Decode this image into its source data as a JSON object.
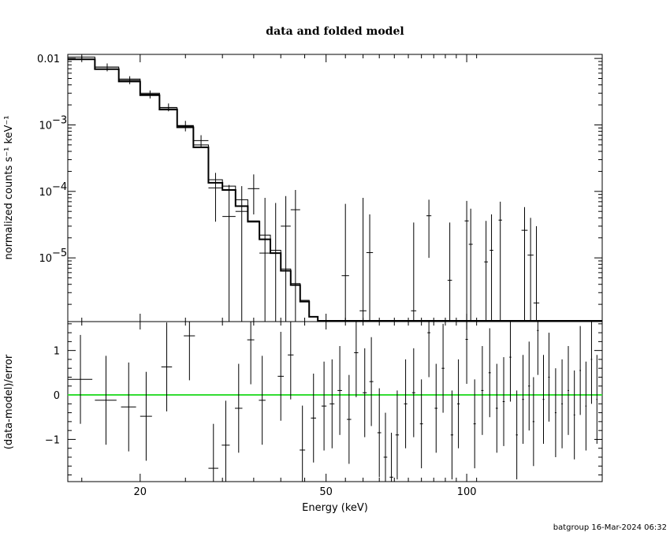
{
  "chart_data": {
    "type": "line",
    "title": "data and folded model",
    "footer": "batgroup 16-Mar-2024 06:32",
    "xlabel": "Energy (keV)",
    "xscale": "log",
    "xlim": [
      14,
      195
    ],
    "xticks": [
      {
        "value": 20,
        "label": "20"
      },
      {
        "value": 50,
        "label": "50"
      },
      {
        "value": 100,
        "label": "100"
      }
    ],
    "colors": {
      "axes": "#000000",
      "zero_line": "#33dd33"
    },
    "top_panel": {
      "ylabel": "normalized counts s⁻¹ keV⁻¹",
      "yscale": "log",
      "ylim": [
        1.1e-06,
        0.0115
      ],
      "yticks": [
        {
          "value": 0.01,
          "label": "0.01"
        },
        {
          "value": 0.001,
          "base": "10",
          "exp": "−3"
        },
        {
          "value": 0.0001,
          "base": "10",
          "exp": "−4"
        },
        {
          "value": 1e-05,
          "base": "10",
          "exp": "−5"
        }
      ],
      "model_thin": [
        {
          "x0": 14.0,
          "x1": 16.0,
          "y": 0.0105
        },
        {
          "x0": 16.0,
          "x1": 18.0,
          "y": 0.0074
        },
        {
          "x0": 18.0,
          "x1": 20.0,
          "y": 0.0049
        },
        {
          "x0": 20.0,
          "x1": 22.0,
          "y": 0.003
        },
        {
          "x0": 22.0,
          "x1": 24.0,
          "y": 0.0018
        },
        {
          "x0": 24.0,
          "x1": 26.0,
          "y": 0.00098
        },
        {
          "x0": 26.0,
          "x1": 28.0,
          "y": 0.0005
        },
        {
          "x0": 28.0,
          "x1": 30.0,
          "y": 0.00015
        },
        {
          "x0": 30.0,
          "x1": 32.0,
          "y": 0.00012
        },
        {
          "x0": 32.0,
          "x1": 34.0,
          "y": 7.5e-05
        },
        {
          "x0": 34.0,
          "x1": 36.0,
          "y": 3.6e-05
        },
        {
          "x0": 36.0,
          "x1": 38.0,
          "y": 2.2e-05
        },
        {
          "x0": 38.0,
          "x1": 40.0,
          "y": 1.3e-05
        },
        {
          "x0": 40.0,
          "x1": 42.0,
          "y": 6.8e-06
        },
        {
          "x0": 42.0,
          "x1": 44.0,
          "y": 4.1e-06
        },
        {
          "x0": 44.0,
          "x1": 46.0,
          "y": 2.3e-06
        },
        {
          "x0": 46.0,
          "x1": 48.0,
          "y": 1.3e-06
        }
      ],
      "model_thick": [
        {
          "x0": 14.0,
          "x1": 16.0,
          "y": 0.0097
        },
        {
          "x0": 16.0,
          "x1": 18.0,
          "y": 0.0069
        },
        {
          "x0": 18.0,
          "x1": 20.0,
          "y": 0.0045
        },
        {
          "x0": 20.0,
          "x1": 22.0,
          "y": 0.0028
        },
        {
          "x0": 22.0,
          "x1": 24.0,
          "y": 0.0017
        },
        {
          "x0": 24.0,
          "x1": 26.0,
          "y": 0.00092
        },
        {
          "x0": 26.0,
          "x1": 28.0,
          "y": 0.00046
        },
        {
          "x0": 28.0,
          "x1": 30.0,
          "y": 0.000135
        },
        {
          "x0": 30.0,
          "x1": 32.0,
          "y": 0.000105
        },
        {
          "x0": 32.0,
          "x1": 34.0,
          "y": 6e-05
        },
        {
          "x0": 34.0,
          "x1": 36.0,
          "y": 3.5e-05
        },
        {
          "x0": 36.0,
          "x1": 38.0,
          "y": 1.9e-05
        },
        {
          "x0": 38.0,
          "x1": 40.0,
          "y": 1.18e-05
        },
        {
          "x0": 40.0,
          "x1": 42.0,
          "y": 6.4e-06
        },
        {
          "x0": 42.0,
          "x1": 44.0,
          "y": 3.9e-06
        },
        {
          "x0": 44.0,
          "x1": 46.0,
          "y": 2.2e-06
        },
        {
          "x0": 46.0,
          "x1": 48.0,
          "y": 1.3e-06
        }
      ],
      "points": [
        {
          "x": 15.0,
          "xlo": 14.0,
          "xhi": 16.0,
          "y": 0.0098,
          "ylo": 0.0088,
          "yhi": 0.0108
        },
        {
          "x": 17.0,
          "xlo": 16.0,
          "xhi": 18.0,
          "y": 0.0074,
          "ylo": 0.0064,
          "yhi": 0.0084
        },
        {
          "x": 19.0,
          "xlo": 18.0,
          "xhi": 20.0,
          "y": 0.0047,
          "ylo": 0.0041,
          "yhi": 0.0054
        },
        {
          "x": 21.0,
          "xlo": 20.0,
          "xhi": 22.0,
          "y": 0.0029,
          "ylo": 0.0025,
          "yhi": 0.0033
        },
        {
          "x": 23.0,
          "xlo": 22.0,
          "xhi": 24.0,
          "y": 0.00183,
          "ylo": 0.0016,
          "yhi": 0.0021
        },
        {
          "x": 25.0,
          "xlo": 24.0,
          "xhi": 26.0,
          "y": 0.00096,
          "ylo": 0.0008,
          "yhi": 0.00115
        },
        {
          "x": 27.0,
          "xlo": 26.0,
          "xhi": 28.0,
          "y": 0.00058,
          "ylo": 0.00046,
          "yhi": 0.0007
        },
        {
          "x": 29.0,
          "xlo": 28.0,
          "xhi": 30.0,
          "y": 0.000113,
          "ylo": 3.5e-05,
          "yhi": 0.00019
        },
        {
          "x": 31.0,
          "xlo": 30.0,
          "xhi": 32.0,
          "y": 4.2e-05,
          "ylo": 1.1e-06,
          "yhi": 0.000125
        },
        {
          "x": 33.0,
          "xlo": 32.0,
          "xhi": 34.0,
          "y": 5e-05,
          "ylo": 1.1e-06,
          "yhi": 0.00012
        },
        {
          "x": 35.0,
          "xlo": 34.0,
          "xhi": 36.0,
          "y": 0.00011,
          "ylo": 4.5e-05,
          "yhi": 0.00018
        },
        {
          "x": 37.0,
          "xlo": 36.0,
          "xhi": 38.0,
          "y": 1.18e-05,
          "ylo": 1.1e-06,
          "yhi": 8e-05
        },
        {
          "x": 39.0,
          "xlo": 38.0,
          "xhi": 40.0,
          "y": 1.18e-05,
          "ylo": 1.1e-06,
          "yhi": 6.7e-05
        },
        {
          "x": 41.0,
          "xlo": 40.0,
          "xhi": 42.0,
          "y": 3e-05,
          "ylo": 1.1e-06,
          "yhi": 8.5e-05
        },
        {
          "x": 43.0,
          "xlo": 42.0,
          "xhi": 44.0,
          "y": 5.3e-05,
          "ylo": 1.1e-06,
          "yhi": 0.000105
        },
        {
          "x": 55.0,
          "xlo": 54.0,
          "xhi": 56.0,
          "y": 5.4e-06,
          "ylo": 1.1e-06,
          "yhi": 6.5e-05
        },
        {
          "x": 60.0,
          "xlo": 59.0,
          "xhi": 61.0,
          "y": 1.6e-06,
          "ylo": 1.1e-06,
          "yhi": 8e-05
        },
        {
          "x": 62.0,
          "xlo": 61.0,
          "xhi": 63.0,
          "y": 1.2e-05,
          "ylo": 1.1e-06,
          "yhi": 4.5e-05
        },
        {
          "x": 77.0,
          "xlo": 76.0,
          "xhi": 78.0,
          "y": 1.6e-06,
          "ylo": 1.1e-06,
          "yhi": 3.4e-05
        },
        {
          "x": 83.0,
          "xlo": 82.0,
          "xhi": 84.0,
          "y": 4.3e-05,
          "ylo": 1e-05,
          "yhi": 7.5e-05
        },
        {
          "x": 92.0,
          "xlo": 91.0,
          "xhi": 93.0,
          "y": 4.6e-06,
          "ylo": 1.1e-06,
          "yhi": 3.4e-05
        },
        {
          "x": 100.0,
          "xlo": 99.0,
          "xhi": 101.0,
          "y": 3.6e-05,
          "ylo": 1.1e-06,
          "yhi": 7.2e-05
        },
        {
          "x": 102.0,
          "xlo": 101.0,
          "xhi": 103.0,
          "y": 1.6e-05,
          "ylo": 1.1e-06,
          "yhi": 5.5e-05
        },
        {
          "x": 110.0,
          "xlo": 109.0,
          "xhi": 111.0,
          "y": 8.7e-06,
          "ylo": 1.1e-06,
          "yhi": 3.6e-05
        },
        {
          "x": 113.0,
          "xlo": 112.0,
          "xhi": 114.0,
          "y": 1.3e-05,
          "ylo": 1.1e-06,
          "yhi": 4.5e-05
        },
        {
          "x": 118.0,
          "xlo": 117.0,
          "xhi": 119.0,
          "y": 3.7e-05,
          "ylo": 1.1e-06,
          "yhi": 7e-05
        },
        {
          "x": 133.0,
          "xlo": 131.0,
          "xhi": 135.0,
          "y": 2.6e-05,
          "ylo": 1.1e-06,
          "yhi": 5.8e-05
        },
        {
          "x": 137.0,
          "xlo": 135.0,
          "xhi": 139.0,
          "y": 1.1e-05,
          "ylo": 1.1e-06,
          "yhi": 4e-05
        },
        {
          "x": 141.0,
          "xlo": 139.0,
          "xhi": 143.0,
          "y": 2.1e-06,
          "ylo": 1.1e-06,
          "yhi": 3e-05
        }
      ]
    },
    "bottom_panel": {
      "ylabel": "(data-model)/error",
      "ylim": [
        -1.95,
        1.65
      ],
      "yticks": [
        {
          "value": 1,
          "label": "1"
        },
        {
          "value": 0,
          "label": "0"
        },
        {
          "value": -1,
          "label": "−1"
        }
      ],
      "zero_line": 0,
      "points": [
        {
          "x": 14.9,
          "xlo": 14.0,
          "xhi": 15.8,
          "y": 0.35,
          "ylo": -0.65,
          "yhi": 1.35
        },
        {
          "x": 16.9,
          "xlo": 16.0,
          "xhi": 17.8,
          "y": -0.12,
          "ylo": -1.12,
          "yhi": 0.88
        },
        {
          "x": 18.9,
          "xlo": 18.2,
          "xhi": 19.6,
          "y": -0.27,
          "ylo": -1.27,
          "yhi": 0.73
        },
        {
          "x": 20.6,
          "xlo": 20.0,
          "xhi": 21.2,
          "y": -0.48,
          "ylo": -1.48,
          "yhi": 0.52
        },
        {
          "x": 22.8,
          "xlo": 22.2,
          "xhi": 23.4,
          "y": 0.63,
          "ylo": -0.37,
          "yhi": 1.63
        },
        {
          "x": 25.5,
          "xlo": 24.8,
          "xhi": 26.2,
          "y": 1.33,
          "ylo": 0.33,
          "yhi": 2.33
        },
        {
          "x": 28.7,
          "xlo": 28.0,
          "xhi": 29.4,
          "y": -1.65,
          "ylo": -2.65,
          "yhi": -0.65
        },
        {
          "x": 30.5,
          "xlo": 29.9,
          "xhi": 31.1,
          "y": -1.13,
          "ylo": -2.13,
          "yhi": -0.13
        },
        {
          "x": 32.5,
          "xlo": 31.9,
          "xhi": 33.1,
          "y": -0.3,
          "ylo": -1.3,
          "yhi": 0.7
        },
        {
          "x": 34.5,
          "xlo": 33.9,
          "xhi": 35.1,
          "y": 1.24,
          "ylo": 0.24,
          "yhi": 2.24
        },
        {
          "x": 36.5,
          "xlo": 35.9,
          "xhi": 37.1,
          "y": -0.12,
          "ylo": -1.12,
          "yhi": 0.88
        },
        {
          "x": 40.0,
          "xlo": 39.4,
          "xhi": 40.6,
          "y": 0.42,
          "ylo": -0.58,
          "yhi": 1.42
        },
        {
          "x": 42.0,
          "xlo": 41.4,
          "xhi": 42.6,
          "y": 0.9,
          "ylo": -0.1,
          "yhi": 1.9
        },
        {
          "x": 44.5,
          "xlo": 43.9,
          "xhi": 45.1,
          "y": -1.24,
          "ylo": -2.24,
          "yhi": -0.24
        },
        {
          "x": 47.0,
          "xlo": 46.4,
          "xhi": 47.6,
          "y": -0.52,
          "ylo": -1.52,
          "yhi": 0.48
        },
        {
          "x": 49.5,
          "xlo": 48.9,
          "xhi": 50.1,
          "y": -0.25,
          "ylo": -1.25,
          "yhi": 0.75
        },
        {
          "x": 51.5,
          "xlo": 50.9,
          "xhi": 52.1,
          "y": -0.2,
          "ylo": -1.2,
          "yhi": 0.8
        },
        {
          "x": 53.5,
          "xlo": 52.9,
          "xhi": 54.1,
          "y": 0.1,
          "ylo": -0.9,
          "yhi": 1.1
        },
        {
          "x": 56.0,
          "xlo": 55.4,
          "xhi": 56.6,
          "y": -0.55,
          "ylo": -1.55,
          "yhi": 0.45
        },
        {
          "x": 58.0,
          "xlo": 57.4,
          "xhi": 58.6,
          "y": 0.95,
          "ylo": -0.05,
          "yhi": 1.95
        },
        {
          "x": 60.5,
          "xlo": 59.9,
          "xhi": 61.1,
          "y": 0.05,
          "ylo": -0.95,
          "yhi": 1.05
        },
        {
          "x": 62.5,
          "xlo": 61.9,
          "xhi": 63.1,
          "y": 0.3,
          "ylo": -0.7,
          "yhi": 1.3
        },
        {
          "x": 65.0,
          "xlo": 64.4,
          "xhi": 65.6,
          "y": -0.85,
          "ylo": -1.85,
          "yhi": 0.15
        },
        {
          "x": 67.0,
          "xlo": 66.4,
          "xhi": 67.6,
          "y": -1.4,
          "ylo": -2.4,
          "yhi": -0.4
        },
        {
          "x": 69.0,
          "xlo": 68.4,
          "xhi": 69.6,
          "y": -1.85,
          "ylo": -2.85,
          "yhi": -0.85
        },
        {
          "x": 71.0,
          "xlo": 70.4,
          "xhi": 71.6,
          "y": -0.9,
          "ylo": -1.9,
          "yhi": 0.1
        },
        {
          "x": 74.0,
          "xlo": 73.4,
          "xhi": 74.6,
          "y": -0.2,
          "ylo": -1.2,
          "yhi": 0.8
        },
        {
          "x": 77.0,
          "xlo": 76.4,
          "xhi": 77.6,
          "y": 0.05,
          "ylo": -0.95,
          "yhi": 1.05
        },
        {
          "x": 80.0,
          "xlo": 79.4,
          "xhi": 80.6,
          "y": -0.65,
          "ylo": -1.65,
          "yhi": 0.35
        },
        {
          "x": 83.0,
          "xlo": 82.4,
          "xhi": 83.6,
          "y": 1.4,
          "ylo": 0.4,
          "yhi": 2.4
        },
        {
          "x": 86.0,
          "xlo": 85.4,
          "xhi": 86.6,
          "y": -0.3,
          "ylo": -1.3,
          "yhi": 0.7
        },
        {
          "x": 89.0,
          "xlo": 88.4,
          "xhi": 89.6,
          "y": 0.6,
          "ylo": -0.4,
          "yhi": 1.6
        },
        {
          "x": 93.0,
          "xlo": 92.4,
          "xhi": 93.6,
          "y": -0.9,
          "ylo": -1.9,
          "yhi": 0.1
        },
        {
          "x": 96.0,
          "xlo": 95.4,
          "xhi": 96.6,
          "y": -0.2,
          "ylo": -1.2,
          "yhi": 0.8
        },
        {
          "x": 100.0,
          "xlo": 99.4,
          "xhi": 100.6,
          "y": 1.25,
          "ylo": 0.25,
          "yhi": 2.25
        },
        {
          "x": 104.0,
          "xlo": 103.4,
          "xhi": 104.6,
          "y": -0.65,
          "ylo": -1.65,
          "yhi": 0.35
        },
        {
          "x": 108.0,
          "xlo": 107.4,
          "xhi": 108.6,
          "y": 0.1,
          "ylo": -0.9,
          "yhi": 1.1
        },
        {
          "x": 112.0,
          "xlo": 111.4,
          "xhi": 112.6,
          "y": 0.5,
          "ylo": -0.5,
          "yhi": 1.5
        },
        {
          "x": 116.0,
          "xlo": 115.4,
          "xhi": 116.6,
          "y": -0.3,
          "ylo": -1.3,
          "yhi": 0.7
        },
        {
          "x": 120.0,
          "xlo": 119.4,
          "xhi": 120.6,
          "y": -0.15,
          "ylo": -1.15,
          "yhi": 0.85
        },
        {
          "x": 124.0,
          "xlo": 123.4,
          "xhi": 124.6,
          "y": 0.85,
          "ylo": -0.15,
          "yhi": 1.85
        },
        {
          "x": 128.0,
          "xlo": 127.4,
          "xhi": 128.6,
          "y": -0.9,
          "ylo": -1.9,
          "yhi": 0.1
        },
        {
          "x": 132.0,
          "xlo": 131.4,
          "xhi": 132.6,
          "y": -0.1,
          "ylo": -1.1,
          "yhi": 0.9
        },
        {
          "x": 136.0,
          "xlo": 135.4,
          "xhi": 136.6,
          "y": 0.2,
          "ylo": -0.8,
          "yhi": 1.2
        },
        {
          "x": 139.0,
          "xlo": 138.4,
          "xhi": 139.6,
          "y": -0.6,
          "ylo": -1.6,
          "yhi": 0.4
        },
        {
          "x": 142.0,
          "xlo": 141.4,
          "xhi": 142.6,
          "y": 1.45,
          "ylo": 0.45,
          "yhi": 2.45
        },
        {
          "x": 146.0,
          "xlo": 145.4,
          "xhi": 146.6,
          "y": -0.1,
          "ylo": -1.1,
          "yhi": 0.9
        },
        {
          "x": 150.0,
          "xlo": 149.4,
          "xhi": 150.6,
          "y": 0.4,
          "ylo": -0.6,
          "yhi": 1.4
        },
        {
          "x": 155.0,
          "xlo": 154.4,
          "xhi": 155.6,
          "y": -0.4,
          "ylo": -1.4,
          "yhi": 0.6
        },
        {
          "x": 160.0,
          "xlo": 159.4,
          "xhi": 160.6,
          "y": -0.2,
          "ylo": -1.2,
          "yhi": 0.8
        },
        {
          "x": 165.0,
          "xlo": 164.4,
          "xhi": 165.6,
          "y": 0.1,
          "ylo": -0.9,
          "yhi": 1.1
        },
        {
          "x": 170.0,
          "xlo": 169.4,
          "xhi": 170.6,
          "y": -0.45,
          "ylo": -1.45,
          "yhi": 0.55
        },
        {
          "x": 175.0,
          "xlo": 174.4,
          "xhi": 175.6,
          "y": 0.55,
          "ylo": -0.45,
          "yhi": 1.55
        },
        {
          "x": 180.0,
          "xlo": 179.4,
          "xhi": 180.6,
          "y": -0.25,
          "ylo": -1.25,
          "yhi": 0.75
        },
        {
          "x": 185.0,
          "xlo": 184.4,
          "xhi": 185.6,
          "y": 0.8,
          "ylo": -0.2,
          "yhi": 1.8
        },
        {
          "x": 190.0,
          "xlo": 189.4,
          "xhi": 190.6,
          "y": -0.1,
          "ylo": -1.1,
          "yhi": 0.9
        }
      ]
    }
  }
}
